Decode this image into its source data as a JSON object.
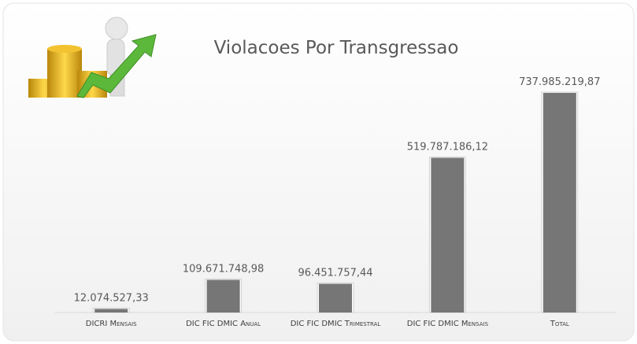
{
  "chart_data": {
    "type": "bar",
    "title": "Violacoes Por Transgressao",
    "categories": [
      "DICRI Mensais",
      "DIC FIC DMIC Anual",
      "DIC FIC DMIC Trimestral",
      "DIC FIC DMIC Mensais",
      "Total"
    ],
    "values": [
      12074527.33,
      109671748.98,
      96451757.44,
      519787186.12,
      737985219.87
    ],
    "value_labels": [
      "12.074.527,33",
      "109.671.748,98",
      "96.451.757,44",
      "519.787.186,12",
      "737.985.219,87"
    ],
    "color": "#767676"
  }
}
